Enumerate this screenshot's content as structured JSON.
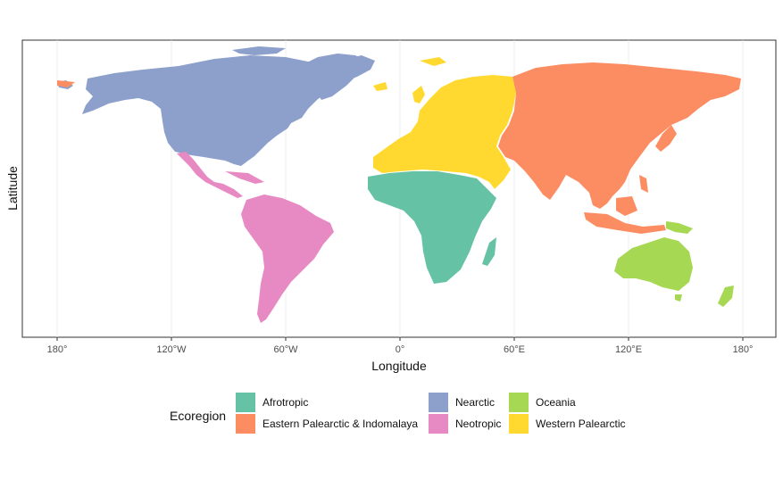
{
  "axes": {
    "xlabel": "Longitude",
    "ylabel": "Latitude",
    "x_ticks": [
      "180°",
      "120°W",
      "60°W",
      "0°",
      "60°E",
      "120°E",
      "180°"
    ]
  },
  "legend": {
    "title": "Ecoregion",
    "items": [
      {
        "label": "Afrotropic",
        "color": "#66c2a5"
      },
      {
        "label": "Eastern Palearctic & Indomalaya",
        "color": "#fc8d62"
      },
      {
        "label": "Nearctic",
        "color": "#8da0cb"
      },
      {
        "label": "Neotropic",
        "color": "#e78ac3"
      },
      {
        "label": "Oceania",
        "color": "#a6d854"
      },
      {
        "label": "Western Palearctic",
        "color": "#ffd92f"
      }
    ]
  },
  "regions": [
    {
      "name": "Nearctic",
      "color": "#8da0cb"
    },
    {
      "name": "Neotropic",
      "color": "#e78ac3"
    },
    {
      "name": "Afrotropic",
      "color": "#66c2a5"
    },
    {
      "name": "Western Palearctic",
      "color": "#ffd92f"
    },
    {
      "name": "Eastern Palearctic & Indomalaya",
      "color": "#fc8d62"
    },
    {
      "name": "Oceania",
      "color": "#a6d854"
    }
  ]
}
